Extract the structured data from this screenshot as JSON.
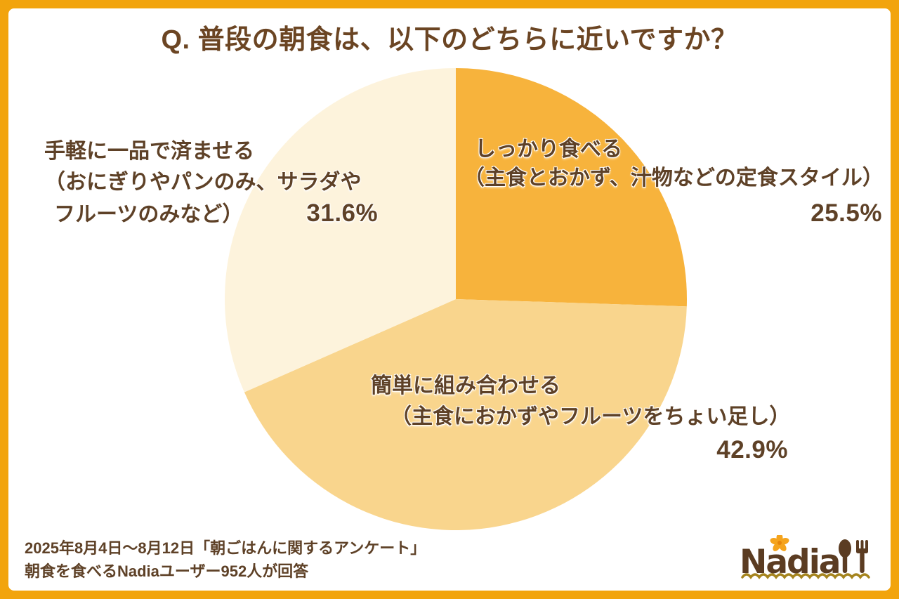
{
  "title": "Q. 普段の朝食は、以下のどちらに近いですか？",
  "chart_data": {
    "type": "pie",
    "title": "Q. 普段の朝食は、以下のどちらに近いですか？",
    "start_angle_deg": -90,
    "direction": "clockwise",
    "legend_position": "none",
    "total_respondents": "952",
    "slices": [
      {
        "label": "しっかり食べる（主食とおかず、汁物などの定食スタイル）",
        "value": 25.5,
        "color": "#F7B33C"
      },
      {
        "label": "簡単に組み合わせる（主食におかずやフルーツをちょい足し）",
        "value": 42.9,
        "color": "#F9D58D"
      },
      {
        "label": "手軽に一品で済ませる（おにぎりやパンのみ、サラダやフルーツのみなど）",
        "value": 31.6,
        "color": "#FDF3DC"
      }
    ]
  },
  "labels": {
    "hearty": {
      "line1": "しっかり食べる",
      "line2": "（主食とおかず、汁物などの定食スタイル）",
      "pct": "25.5%"
    },
    "combine": {
      "line1": "簡単に組み合わせる",
      "line2": "（主食におかずやフルーツをちょい足し）",
      "pct": "42.9%"
    },
    "simple": {
      "line1": "手軽に一品で済ませる",
      "line2": "（おにぎりやパンのみ、サラダや",
      "line3": "フルーツのみなど）",
      "pct": "31.6%"
    }
  },
  "footer": {
    "line1": "2025年8月4日～8月12日「朝ごはんに関するアンケート」",
    "line2": "朝食を食べるNadiaユーザー952人が回答"
  },
  "logo": {
    "text": "Nadia"
  },
  "colors": {
    "frame_border": "#F2A40D",
    "title_text": "#6B4523",
    "label_text": "#5E4127",
    "logo_brown": "#5B3C22",
    "flower_orange": "#F5A41D",
    "flower_center": "#E8860B",
    "wave_gold": "#A5841E",
    "background": "#FFFFFF"
  }
}
